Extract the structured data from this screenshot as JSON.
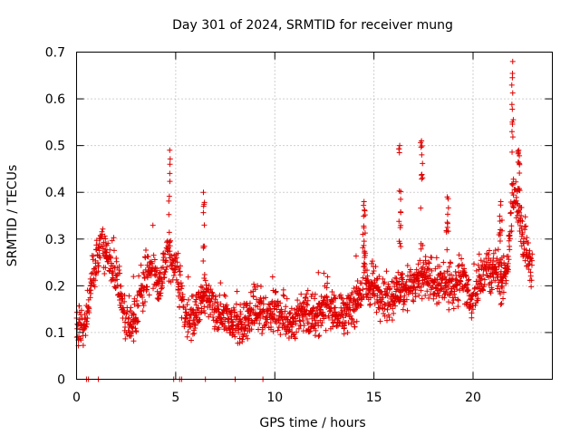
{
  "chart_data": {
    "type": "scatter",
    "title": "Day 301 of 2024, SRMTID for receiver mung",
    "xlabel": "GPS time / hours",
    "ylabel": "SRMTID / TECUs",
    "xlim": [
      0,
      24
    ],
    "ylim": [
      0,
      0.7
    ],
    "xticks": [
      0,
      5,
      10,
      15,
      20
    ],
    "xtick_labels": [
      "0",
      "5",
      "10",
      "15",
      "20"
    ],
    "yticks": [
      0,
      0.1,
      0.2,
      0.3,
      0.4,
      0.5,
      0.6,
      0.7
    ],
    "ytick_labels": [
      "0",
      "0.1",
      "0.2",
      "0.3",
      "0.4",
      "0.5",
      "0.6",
      "0.7"
    ],
    "grid": true,
    "marker": "+",
    "color": "#e00000",
    "series": [
      {
        "name": "SRMTID",
        "profile_x": [
          0.0,
          0.5,
          0.8,
          1.2,
          1.6,
          2.0,
          2.5,
          3.0,
          3.3,
          3.8,
          4.2,
          4.6,
          5.0,
          5.5,
          6.0,
          6.5,
          7.0,
          7.5,
          8.0,
          8.5,
          9.0,
          9.5,
          10.0,
          10.5,
          11.0,
          11.5,
          12.0,
          12.5,
          13.0,
          13.5,
          14.0,
          14.5,
          15.0,
          15.5,
          16.0,
          16.5,
          17.0,
          17.5,
          18.0,
          18.5,
          19.0,
          19.5,
          20.0,
          20.5,
          21.0,
          21.5,
          21.8,
          22.0,
          22.3,
          22.7,
          23.0
        ],
        "profile_y": [
          0.11,
          0.12,
          0.22,
          0.28,
          0.26,
          0.22,
          0.12,
          0.12,
          0.2,
          0.24,
          0.2,
          0.26,
          0.24,
          0.13,
          0.14,
          0.18,
          0.14,
          0.13,
          0.12,
          0.12,
          0.15,
          0.14,
          0.15,
          0.13,
          0.12,
          0.15,
          0.13,
          0.16,
          0.14,
          0.14,
          0.16,
          0.2,
          0.2,
          0.17,
          0.18,
          0.2,
          0.2,
          0.22,
          0.21,
          0.2,
          0.2,
          0.22,
          0.16,
          0.22,
          0.24,
          0.2,
          0.28,
          0.4,
          0.36,
          0.27,
          0.24
        ],
        "spread": 0.05,
        "spikes": [
          {
            "x": 4.7,
            "ymax": 0.49
          },
          {
            "x": 6.4,
            "ymax": 0.4
          },
          {
            "x": 14.5,
            "ymax": 0.38
          },
          {
            "x": 16.3,
            "ymax": 0.5
          },
          {
            "x": 17.4,
            "ymax": 0.51
          },
          {
            "x": 18.7,
            "ymax": 0.39
          },
          {
            "x": 21.4,
            "ymax": 0.38
          },
          {
            "x": 22.0,
            "ymax": 0.68
          },
          {
            "x": 22.3,
            "ymax": 0.49
          }
        ],
        "zero_points": [
          0.5,
          0.6,
          1.1,
          4.9,
          5.2,
          5.3,
          6.5,
          8.0,
          9.4
        ]
      }
    ]
  }
}
